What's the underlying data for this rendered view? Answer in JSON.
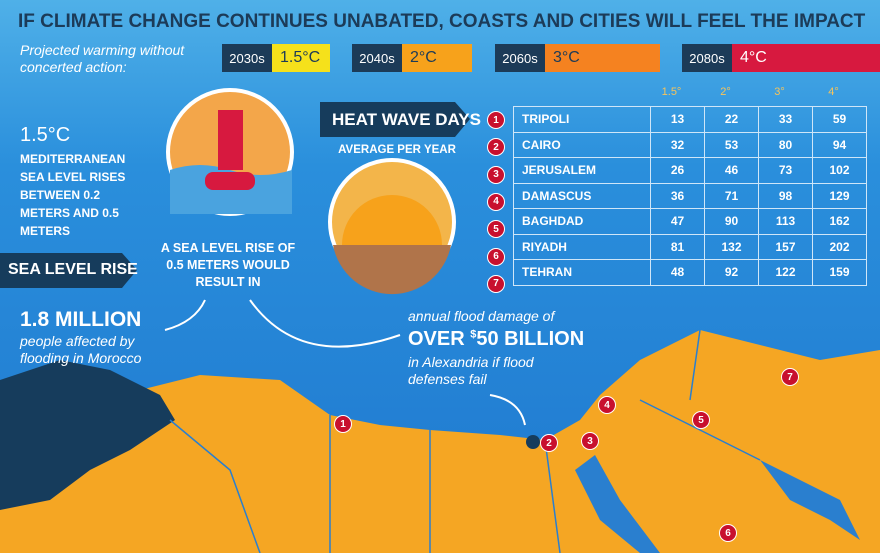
{
  "header": {
    "title": "IF CLIMATE CHANGE CONTINUES UNABATED, COASTS AND CITIES WILL FEEL THE IMPACT"
  },
  "warming": {
    "label": "Projected warming without concerted action:",
    "periods": [
      {
        "decade": "2030s",
        "temp": "1.5°C",
        "color": "#f5e11b"
      },
      {
        "decade": "2040s",
        "temp": "2°C",
        "color": "#f7a21b"
      },
      {
        "decade": "2060s",
        "temp": "3°C",
        "color": "#f58220"
      },
      {
        "decade": "2080s",
        "temp": "4°C",
        "color": "#d7193f"
      }
    ]
  },
  "sea_level": {
    "temp": "1.5°C",
    "text": "MEDITERRANEAN SEA LEVEL RISES BETWEEN 0.2 METERS AND 0.5 METERS",
    "banner": "SEA LEVEL RISE",
    "rise_text": "A SEA LEVEL RISE OF 0.5 METERS WOULD RESULT IN",
    "affected_number": "1.8 MILLION",
    "affected_text": "people affected by flooding in Morocco",
    "flood_intro": "annual flood damage of",
    "flood_over": "OVER",
    "flood_currency": "$",
    "flood_value": "50 BILLION",
    "flood_text": "in Alexandria if flood defenses fail"
  },
  "heat_wave": {
    "title": "HEAT WAVE DAYS",
    "subtitle": "AVERAGE PER YEAR",
    "table": {
      "columns": [
        "1.5°",
        "2°",
        "3°",
        "4°"
      ],
      "rows": [
        {
          "rank": "1",
          "city": "TRIPOLI",
          "values": [
            13,
            22,
            33,
            59
          ]
        },
        {
          "rank": "2",
          "city": "CAIRO",
          "values": [
            32,
            53,
            80,
            94
          ]
        },
        {
          "rank": "3",
          "city": "JERUSALEM",
          "values": [
            26,
            46,
            73,
            102
          ]
        },
        {
          "rank": "4",
          "city": "DAMASCUS",
          "values": [
            36,
            71,
            98,
            129
          ]
        },
        {
          "rank": "5",
          "city": "BAGHDAD",
          "values": [
            47,
            90,
            113,
            162
          ]
        },
        {
          "rank": "6",
          "city": "RIYADH",
          "values": [
            81,
            132,
            157,
            202
          ]
        },
        {
          "rank": "7",
          "city": "TEHRAN",
          "values": [
            48,
            92,
            122,
            159
          ]
        }
      ]
    }
  },
  "map": {
    "markers": [
      "1",
      "2",
      "3",
      "4",
      "5",
      "6",
      "7"
    ]
  }
}
